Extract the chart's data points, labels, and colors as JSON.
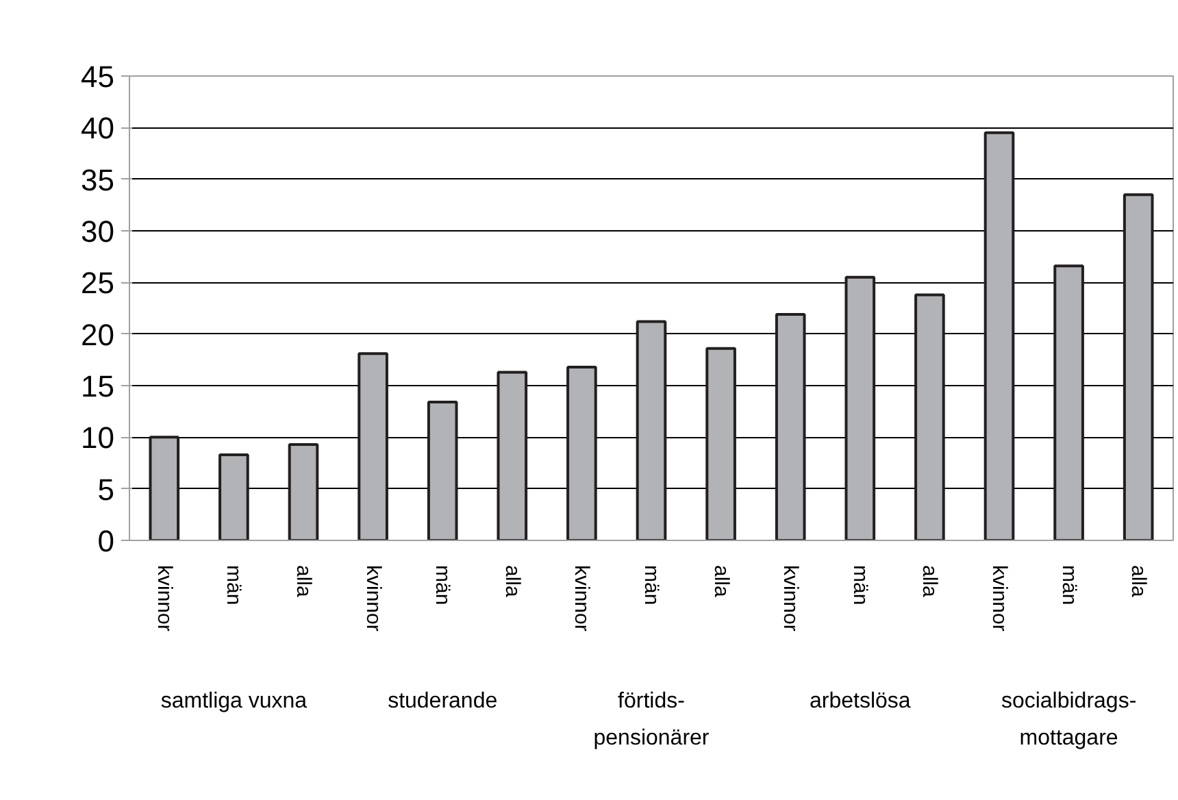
{
  "chart_data": {
    "type": "bar",
    "categories": [
      "kvinnor",
      "män",
      "alla",
      "kvinnor",
      "män",
      "alla",
      "kvinnor",
      "män",
      "alla",
      "kvinnor",
      "män",
      "alla",
      "kvinnor",
      "män",
      "alla"
    ],
    "annotations": [
      "samtliga vuxna",
      "studerande",
      "förtids-\npensionärer",
      "arbetslösa",
      "socialbidrags-\nmottagare"
    ],
    "values": [
      10.0,
      8.3,
      9.3,
      18.1,
      13.4,
      16.3,
      16.8,
      21.2,
      18.6,
      21.9,
      25.5,
      23.8,
      39.5,
      26.6,
      33.5
    ],
    "color": "#b2b3b7",
    "ylim": [
      0,
      45
    ],
    "yticks": [
      0,
      5,
      10,
      15,
      20,
      25,
      30,
      35,
      40,
      45
    ],
    "grid": "y"
  }
}
